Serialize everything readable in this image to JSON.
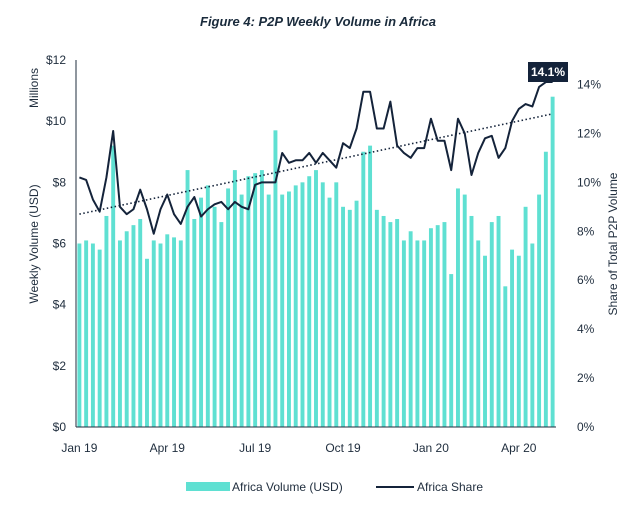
{
  "chart_data": {
    "type": "bar",
    "title": "Figure 4: P2P Weekly Volume in Africa",
    "units_label": "Millions",
    "ylabel": "Weekly Volume (USD)",
    "y2label": "Share of Total P2P Volume",
    "x_tick_labels": [
      "Jan 19",
      "Apr 19",
      "Jul 19",
      "Oct 19",
      "Jan 20",
      "Apr 20"
    ],
    "y_tick_labels": [
      "$0",
      "$2",
      "$4",
      "$6",
      "$8",
      "$10",
      "$12"
    ],
    "y2_tick_labels": [
      "0%",
      "2%",
      "4%",
      "6%",
      "8%",
      "10%",
      "12%",
      "14%"
    ],
    "ylim": [
      0,
      12
    ],
    "y2lim": [
      0,
      15
    ],
    "callout": "14.1%",
    "series": [
      {
        "name": "Africa Volume (USD)",
        "color": "#5fe0d2",
        "values": [
          6.0,
          6.1,
          6.0,
          5.8,
          6.9,
          9.2,
          6.1,
          6.4,
          6.6,
          6.8,
          5.5,
          6.1,
          6.0,
          6.3,
          6.2,
          6.1,
          8.4,
          6.8,
          7.5,
          7.9,
          7.2,
          6.7,
          7.8,
          8.4,
          7.6,
          8.2,
          8.3,
          8.4,
          7.6,
          9.7,
          7.6,
          7.7,
          7.9,
          8.0,
          8.2,
          8.4,
          8.0,
          7.5,
          8.0,
          7.2,
          7.1,
          7.4,
          9.0,
          9.2,
          7.1,
          6.9,
          6.7,
          6.8,
          6.1,
          6.4,
          6.1,
          6.1,
          6.5,
          6.6,
          6.7,
          5.0,
          7.8,
          7.6,
          6.9,
          6.1,
          5.6,
          6.7,
          6.9,
          4.6,
          5.8,
          5.6,
          7.2,
          6.0,
          7.6,
          9.0,
          10.8
        ],
        "line_values_excluded": true
      },
      {
        "name": "Africa Share",
        "color": "#14233a",
        "values": [
          10.2,
          10.1,
          9.3,
          8.8,
          10.2,
          12.1,
          9.0,
          8.7,
          8.9,
          9.7,
          8.9,
          7.9,
          8.9,
          9.5,
          8.7,
          8.3,
          9.0,
          9.4,
          8.6,
          8.9,
          9.1,
          9.2,
          8.9,
          9.2,
          9.0,
          8.9,
          9.9,
          10.0,
          10.0,
          10.0,
          11.2,
          10.8,
          10.9,
          10.9,
          11.2,
          10.8,
          11.2,
          10.9,
          10.6,
          11.6,
          11.4,
          12.2,
          13.7,
          13.7,
          12.2,
          12.2,
          13.3,
          11.5,
          11.2,
          11.0,
          11.4,
          11.4,
          12.6,
          11.7,
          11.7,
          10.5,
          12.6,
          12.0,
          10.3,
          11.2,
          11.8,
          11.9,
          11.0,
          11.4,
          12.5,
          13.0,
          13.2,
          13.1,
          13.9,
          14.1,
          14.1
        ]
      }
    ],
    "trendline": {
      "style": "dotted",
      "color": "#14233a",
      "start": 8.7,
      "end": 12.8
    },
    "legend_position": "bottom",
    "grid": false
  }
}
